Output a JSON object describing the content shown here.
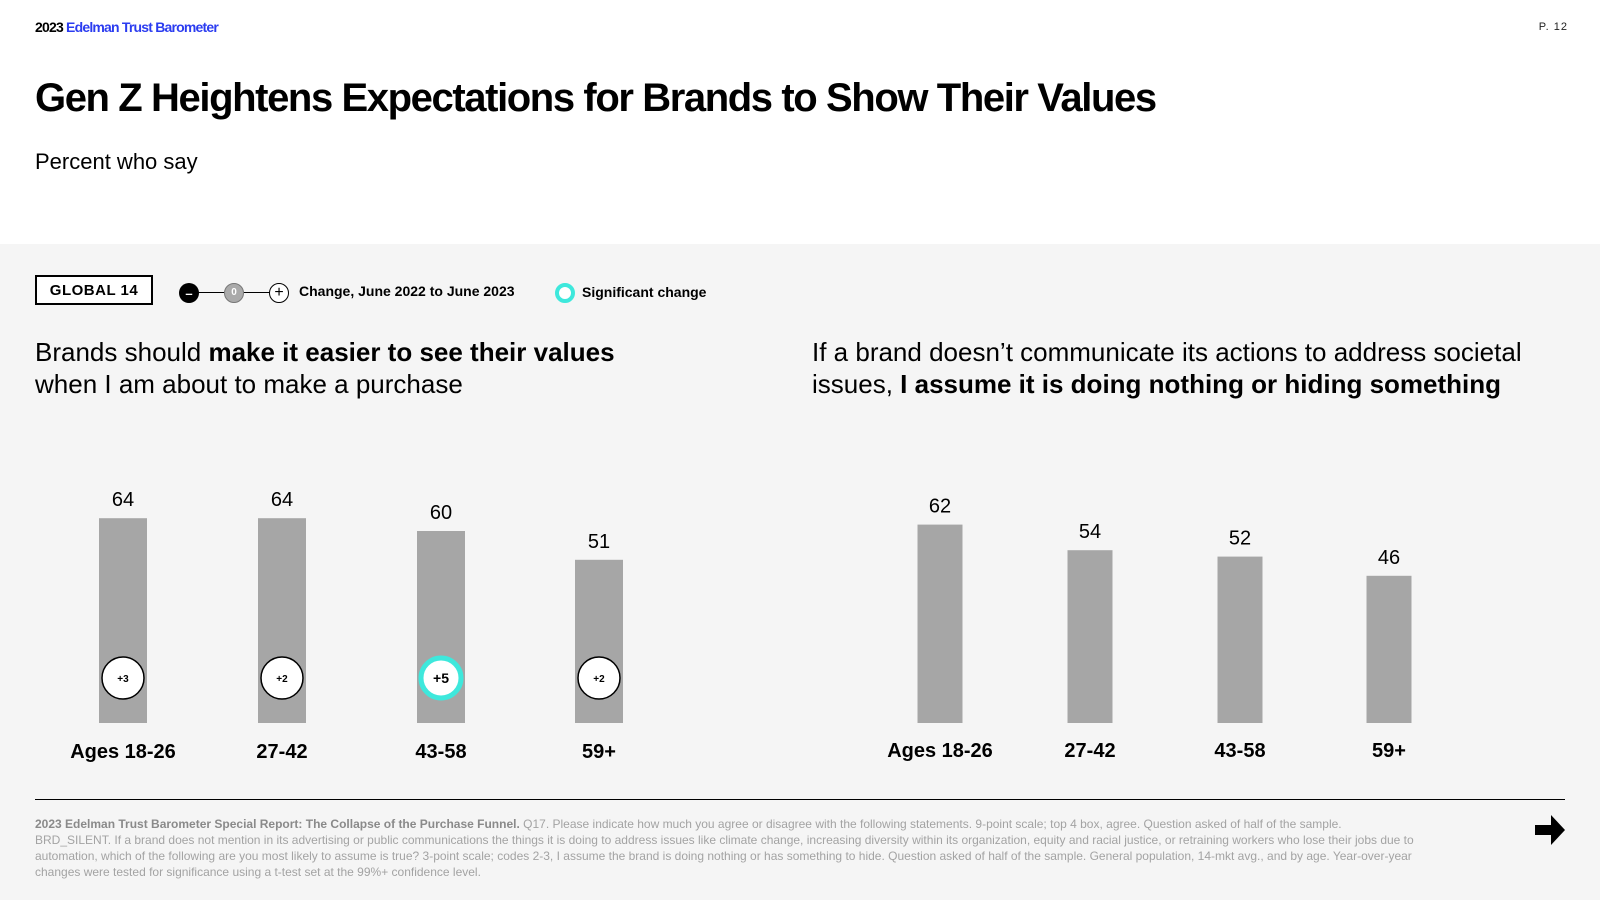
{
  "header": {
    "brand_year": "2023",
    "brand_name": "Edelman Trust Barometer",
    "page_number": "P. 12",
    "title": "Gen Z Heightens Expectations for Brands to Show Their Values",
    "subtitle": "Percent who say"
  },
  "legend": {
    "global_label": "GLOBAL 14",
    "minus_symbol": "–",
    "zero_symbol": "0",
    "plus_symbol": "+",
    "change_label": "Change, June 2022 to June 2023",
    "significant_label": "Significant change",
    "significant_color": "#3ee8dc"
  },
  "charts": {
    "left": {
      "headline_pre": "Brands should ",
      "headline_bold": "make it easier to see their values",
      "headline_post": " when I am about to make a purchase"
    },
    "right": {
      "headline_pre": "If a brand doesn’t communicate its actions to address societal issues, ",
      "headline_bold": "I assume it is doing nothing or hiding something",
      "headline_post": ""
    }
  },
  "chart_data": [
    {
      "type": "bar",
      "title": "Brands should make it easier to see their values when I am about to make a purchase",
      "categories": [
        "Ages 18-26",
        "27-42",
        "43-58",
        "59+"
      ],
      "values": [
        64,
        64,
        60,
        51
      ],
      "changes": [
        "+3",
        "+2",
        "+5",
        "+2"
      ],
      "significant": [
        false,
        false,
        true,
        false
      ],
      "bar_color": "#a6a6a6",
      "ylim": [
        0,
        100
      ]
    },
    {
      "type": "bar",
      "title": "If a brand doesn’t communicate its actions to address societal issues, I assume it is doing nothing or hiding something",
      "categories": [
        "Ages 18-26",
        "27-42",
        "43-58",
        "59+"
      ],
      "values": [
        62,
        54,
        52,
        46
      ],
      "bar_color": "#a6a6a6",
      "ylim": [
        0,
        100
      ]
    }
  ],
  "footer": {
    "source_bold": "2023 Edelman Trust Barometer Special Report: The Collapse of the Purchase Funnel.",
    "source_text": " Q17. Please indicate how much you agree or disagree with the following statements. 9-point scale; top 4 box, agree. Question asked of half of the sample. BRD_SILENT. If a brand does not mention in its advertising or public communications the things it is doing to address issues like climate change, increasing diversity within its organization, equity and racial justice, or retraining workers who lose their jobs due to automation, which of the following are you most likely to assume is true? 3-point scale; codes 2-3, I assume the brand is doing nothing or has something to hide. Question asked of half of the sample. General population, 14-mkt avg., and by age. Year-over-year changes were tested for significance using a t-test set at the 99%+ confidence level."
  }
}
